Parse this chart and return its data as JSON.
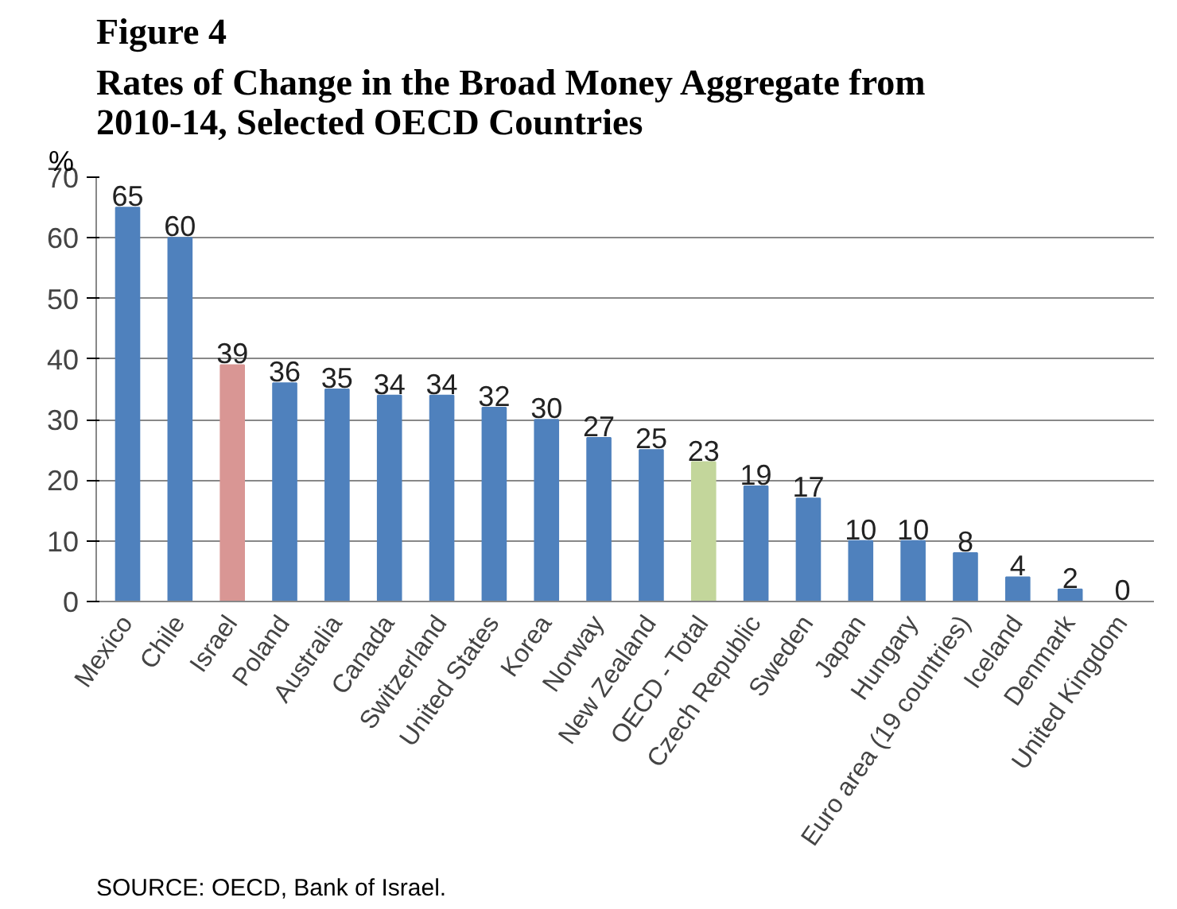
{
  "chart_data": {
    "type": "bar",
    "title": "Figure 4",
    "subtitle": "Rates of Change in the Broad Money Aggregate from 2010-14, Selected OECD Countries",
    "ylabel": "%",
    "categories": [
      "Mexico",
      "Chile",
      "Israel",
      "Poland",
      "Australia",
      "Canada",
      "Switzerland",
      "United States",
      "Korea",
      "Norway",
      "New Zealand",
      "OECD - Total",
      "Czech Republic",
      "Sweden",
      "Japan",
      "Hungary",
      "Euro area (19 countries)",
      "Iceland",
      "Denmark",
      "United Kingdom"
    ],
    "values": [
      65,
      60,
      39,
      36,
      35,
      34,
      34,
      32,
      30,
      27,
      25,
      23,
      19,
      17,
      10,
      10,
      8,
      4,
      2,
      0
    ],
    "colors": [
      "#4f81bd",
      "#4f81bd",
      "#d99694",
      "#4f81bd",
      "#4f81bd",
      "#4f81bd",
      "#4f81bd",
      "#4f81bd",
      "#4f81bd",
      "#4f81bd",
      "#4f81bd",
      "#c3d69b",
      "#4f81bd",
      "#4f81bd",
      "#4f81bd",
      "#4f81bd",
      "#4f81bd",
      "#4f81bd",
      "#4f81bd",
      "#4f81bd"
    ],
    "ylim": [
      0,
      70
    ],
    "yticks": [
      0,
      10,
      20,
      30,
      40,
      50,
      60,
      70
    ],
    "grid": "y",
    "data_labels": true,
    "annotations": [
      "SOURCE: OECD, Bank of Israel."
    ]
  }
}
